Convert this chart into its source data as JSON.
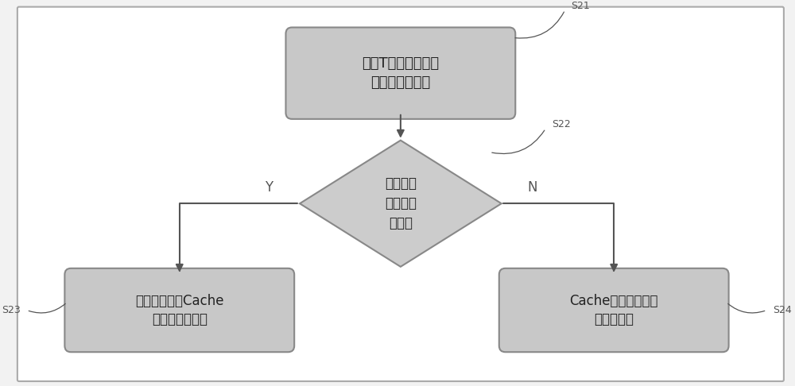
{
  "bg_color": "#f2f2f2",
  "outer_bg": "#ffffff",
  "outer_border_color": "#aaaaaa",
  "box_fill_color": "#c8c8c8",
  "box_fill_color2": "#d0d0d0",
  "box_edge_color": "#888888",
  "diamond_fill_color": "#cccccc",
  "diamond_edge_color": "#888888",
  "arrow_color": "#555555",
  "text_color": "#222222",
  "label_color": "#555555",
  "s21_label": "S21",
  "s22_label": "S22",
  "s23_label": "S23",
  "s24_label": "S24",
  "box1_text": "每隔T秒对每个阵列\n的流量进行检测",
  "diamond_text": "判断阵列\n上是否有\n读流量",
  "box2_text": "进入动态调整Cache\n刷新参数的流程",
  "box3_text": "Cache刷新参数都恢\n复成默认値",
  "y_label": "Y",
  "n_label": "N",
  "figsize": [
    10.0,
    4.86
  ],
  "dpi": 100
}
